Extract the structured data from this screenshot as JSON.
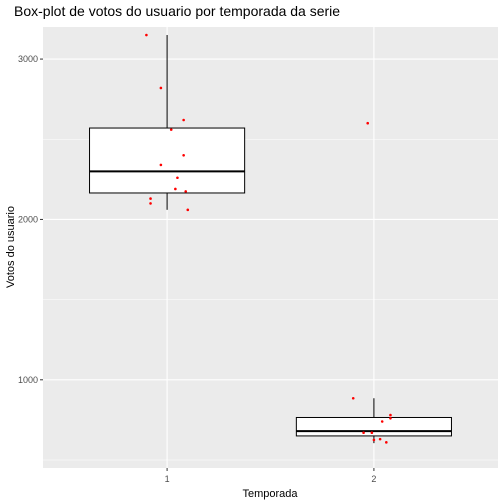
{
  "chart_data": {
    "type": "box",
    "title": "Box-plot de votos do usuario por temporada da serie",
    "xlabel": "Temporada",
    "ylabel": "Votos do usuario",
    "categories": [
      "1",
      "2"
    ],
    "ylim": [
      450,
      3200
    ],
    "yticks": [
      1000,
      2000,
      3000
    ],
    "grid": true,
    "boxes": [
      {
        "category": "1",
        "whisker_low": 2060,
        "q1": 2165,
        "median": 2300,
        "q3": 2570,
        "whisker_high": 3150
      },
      {
        "category": "2",
        "whisker_low": 605,
        "q1": 650,
        "median": 680,
        "q3": 765,
        "whisker_high": 885
      }
    ],
    "points": [
      {
        "x": 0.9,
        "y": 3150
      },
      {
        "x": 0.97,
        "y": 2820
      },
      {
        "x": 1.08,
        "y": 2620
      },
      {
        "x": 1.02,
        "y": 2560
      },
      {
        "x": 1.08,
        "y": 2400
      },
      {
        "x": 0.97,
        "y": 2340
      },
      {
        "x": 1.05,
        "y": 2260
      },
      {
        "x": 1.04,
        "y": 2190
      },
      {
        "x": 1.09,
        "y": 2175
      },
      {
        "x": 0.92,
        "y": 2130
      },
      {
        "x": 0.92,
        "y": 2100
      },
      {
        "x": 1.1,
        "y": 2060
      },
      {
        "x": 1.97,
        "y": 2600
      },
      {
        "x": 1.9,
        "y": 885
      },
      {
        "x": 2.04,
        "y": 740
      },
      {
        "x": 2.08,
        "y": 780
      },
      {
        "x": 2.08,
        "y": 760
      },
      {
        "x": 1.95,
        "y": 670
      },
      {
        "x": 1.99,
        "y": 670
      },
      {
        "x": 2.03,
        "y": 630
      },
      {
        "x": 2.06,
        "y": 610
      },
      {
        "x": 2.0,
        "y": 625
      }
    ],
    "colors": {
      "panel": "#ebebeb",
      "grid_major": "#ffffff",
      "box_fill": "#ffffff",
      "box_line": "#000000",
      "points": "#ff0000"
    }
  }
}
